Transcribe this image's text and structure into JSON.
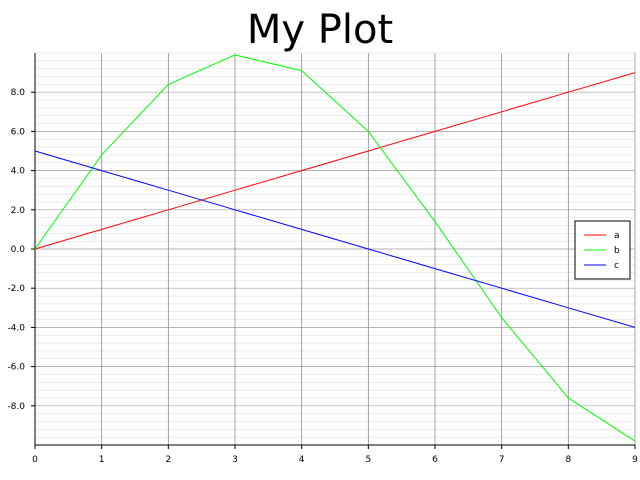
{
  "chart_data": {
    "type": "line",
    "title": "My Plot",
    "xlabel": "",
    "ylabel": "",
    "x": [
      0,
      1,
      2,
      3,
      4,
      5,
      6,
      7,
      8,
      9
    ],
    "xlim": [
      0,
      9
    ],
    "ylim": [
      -10,
      10
    ],
    "x_ticks": [
      0,
      1,
      2,
      3,
      4,
      5,
      6,
      7,
      8,
      9
    ],
    "y_ticks": [
      -8,
      -6,
      -4,
      -2,
      0,
      2,
      4,
      6,
      8
    ],
    "x_tick_labels": [
      "0",
      "1",
      "2",
      "3",
      "4",
      "5",
      "6",
      "7",
      "8",
      "9"
    ],
    "y_tick_labels": [
      "-8.0",
      "-6.0",
      "-4.0",
      "-2.0",
      "0.0",
      "2.0",
      "4.0",
      "6.0",
      "8.0"
    ],
    "grid": true,
    "legend_position": "right",
    "series": [
      {
        "name": "a",
        "color": "#ff0000",
        "values": [
          0,
          1,
          2,
          3,
          4,
          5,
          6,
          7,
          8,
          9
        ]
      },
      {
        "name": "b",
        "color": "#00ff00",
        "values": [
          0,
          4.8,
          8.4,
          9.9,
          9.1,
          6.0,
          1.4,
          -3.5,
          -7.6,
          -9.8
        ]
      },
      {
        "name": "c",
        "color": "#0000ff",
        "values": [
          5,
          4,
          3,
          2,
          1,
          0,
          -1,
          -2,
          -3,
          -4
        ]
      }
    ]
  }
}
